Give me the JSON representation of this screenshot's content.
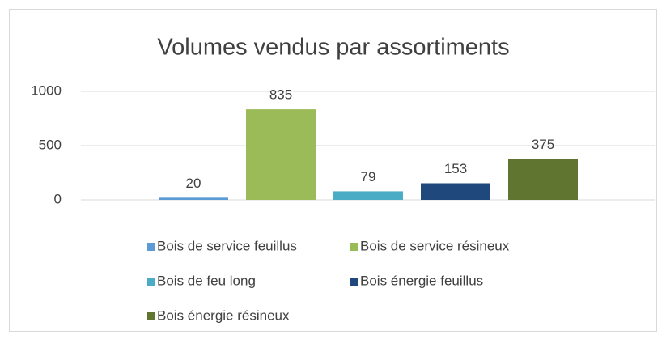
{
  "chart_data": {
    "type": "bar",
    "title": "Volumes vendus par assortiments",
    "categories": [
      null
    ],
    "series": [
      {
        "name": "Bois de service feuillus",
        "color": "#5b9bd5",
        "values": [
          20
        ]
      },
      {
        "name": "Bois de service résineux",
        "color": "#9bbb59",
        "values": [
          835
        ]
      },
      {
        "name": "Bois de feu long",
        "color": "#4bacc6",
        "values": [
          79
        ]
      },
      {
        "name": "Bois énergie feuillus",
        "color": "#1f497d",
        "values": [
          153
        ]
      },
      {
        "name": "Bois énergie résineux",
        "color": "#5f7530",
        "values": [
          375
        ]
      }
    ],
    "ylim": [
      0,
      1000
    ],
    "yticks": [
      0,
      500,
      1000
    ],
    "grid": true,
    "legend": "bottom"
  }
}
